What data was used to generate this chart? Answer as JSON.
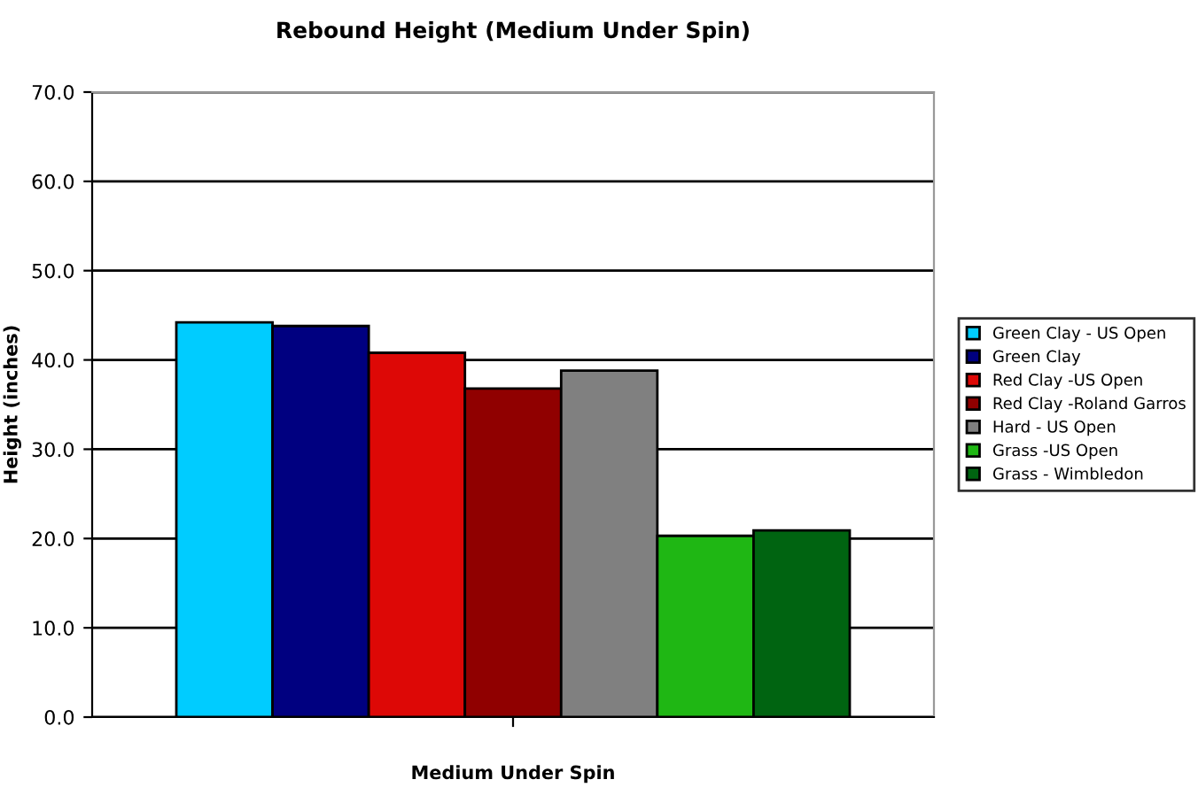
{
  "chart_data": {
    "type": "bar",
    "title": "Rebound Height (Medium Under Spin)",
    "xlabel": "Medium Under Spin",
    "ylabel": "Height (inches)",
    "categories": [
      null
    ],
    "series": [
      {
        "name": "Green Clay - US Open",
        "color": "#00ccff",
        "values": [
          44.2
        ]
      },
      {
        "name": "Green Clay",
        "color": "#000080",
        "values": [
          43.8
        ]
      },
      {
        "name": "Red Clay -US Open",
        "color": "#dd0806",
        "values": [
          40.8
        ]
      },
      {
        "name": "Red Clay -Roland Garros",
        "color": "#900000",
        "values": [
          36.8
        ]
      },
      {
        "name": "Hard - US Open",
        "color": "#808080",
        "values": [
          38.8
        ]
      },
      {
        "name": "Grass -US Open",
        "color": "#1fb714",
        "values": [
          20.3
        ]
      },
      {
        "name": "Grass - Wimbledon",
        "color": "#006411",
        "values": [
          20.9
        ]
      }
    ],
    "ylim": [
      0,
      70
    ],
    "yticks": [
      {
        "value": 0,
        "label": "0.0"
      },
      {
        "value": 10,
        "label": "10.0"
      },
      {
        "value": 20,
        "label": "20.0"
      },
      {
        "value": 30,
        "label": "30.0"
      },
      {
        "value": 40,
        "label": "40.0"
      },
      {
        "value": 50,
        "label": "50.0"
      },
      {
        "value": 60,
        "label": "60.0"
      },
      {
        "value": 70,
        "label": "70.0"
      }
    ],
    "grid": "y",
    "legend": "right"
  }
}
